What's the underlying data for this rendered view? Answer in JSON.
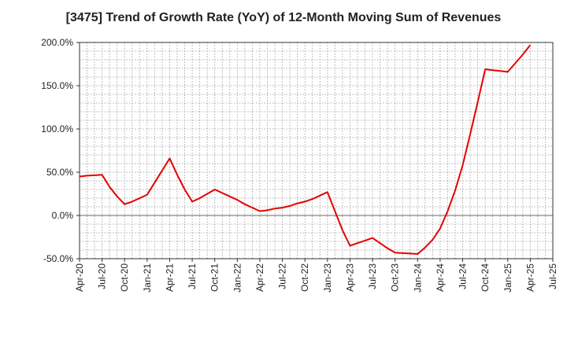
{
  "chart_data": {
    "type": "line",
    "title": "[3475]  Trend of Growth Rate (YoY) of 12-Month Moving Sum of Revenues",
    "xlabel": "",
    "ylabel": "",
    "x_ticks": [
      "Apr-20",
      "Jul-20",
      "Oct-20",
      "Jan-21",
      "Apr-21",
      "Jul-21",
      "Oct-21",
      "Jan-22",
      "Apr-22",
      "Jul-22",
      "Oct-22",
      "Jan-23",
      "Apr-23",
      "Jul-23",
      "Oct-23",
      "Jan-24",
      "Apr-24",
      "Jul-24",
      "Oct-24",
      "Jan-25",
      "Apr-25",
      "Jul-25"
    ],
    "y_ticks": [
      "200.0%",
      "150.0%",
      "100.0%",
      "50.0%",
      "0.0%",
      "-50.0%"
    ],
    "ylim": [
      -50,
      200
    ],
    "y_tick_values": [
      200,
      150,
      100,
      50,
      0,
      -50
    ],
    "grid": true,
    "line_color": "#e60000",
    "x": [
      "Apr-20",
      "May-20",
      "Jun-20",
      "Jul-20",
      "Aug-20",
      "Sep-20",
      "Oct-20",
      "Nov-20",
      "Dec-20",
      "Jan-21",
      "Feb-21",
      "Mar-21",
      "Apr-21",
      "May-21",
      "Jun-21",
      "Jul-21",
      "Aug-21",
      "Sep-21",
      "Oct-21",
      "Nov-21",
      "Dec-21",
      "Jan-22",
      "Feb-22",
      "Mar-22",
      "Apr-22",
      "May-22",
      "Jun-22",
      "Jul-22",
      "Aug-22",
      "Sep-22",
      "Oct-22",
      "Nov-22",
      "Dec-22",
      "Jan-23",
      "Feb-23",
      "Mar-23",
      "Apr-23",
      "May-23",
      "Jun-23",
      "Jul-23",
      "Aug-23",
      "Sep-23",
      "Oct-23",
      "Nov-23",
      "Dec-23",
      "Jan-24",
      "Feb-24",
      "Mar-24",
      "Apr-24",
      "May-24",
      "Jun-24",
      "Jul-24",
      "Aug-24",
      "Sep-24",
      "Oct-24",
      "Nov-24",
      "Dec-24",
      "Jan-25",
      "Feb-25",
      "Mar-25",
      "Apr-25"
    ],
    "series": [
      {
        "values": [
          45,
          46,
          46.5,
          47,
          33,
          22,
          13,
          16,
          20,
          24,
          38,
          52,
          66,
          47,
          30,
          16,
          20,
          25,
          30,
          26,
          22,
          18,
          13,
          9,
          5,
          6,
          8,
          9,
          11,
          14,
          16,
          19,
          23,
          27,
          5,
          -17,
          -35,
          -32,
          -29,
          -26,
          -32,
          -38,
          -43,
          -43.5,
          -44,
          -44.5,
          -37,
          -28,
          -15,
          5,
          29,
          58,
          94,
          131,
          169,
          168,
          167,
          166,
          176,
          186,
          197
        ]
      }
    ]
  }
}
